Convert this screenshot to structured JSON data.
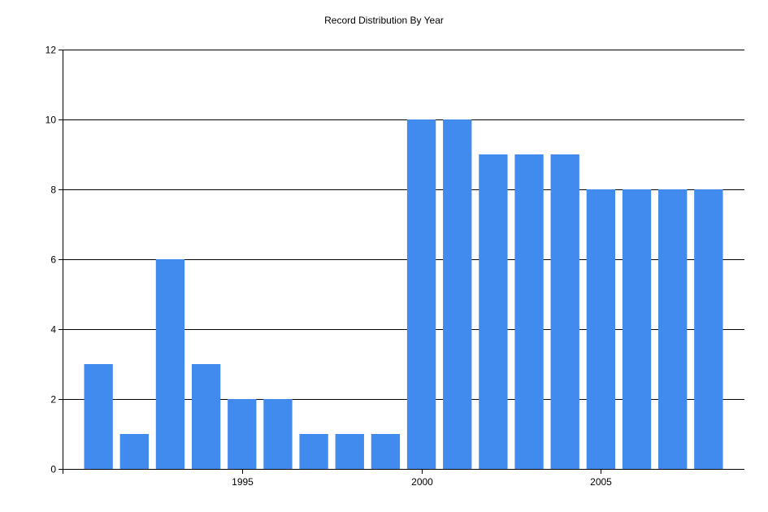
{
  "chart_data": {
    "type": "bar",
    "title": "Record Distribution By Year",
    "xlabel": "",
    "ylabel": "",
    "categories": [
      1991,
      1992,
      1993,
      1994,
      1995,
      1996,
      1997,
      1998,
      1999,
      2000,
      2001,
      2002,
      2003,
      2004,
      2005,
      2006,
      2007,
      2008
    ],
    "values": [
      3,
      1,
      6,
      3,
      2,
      2,
      1,
      1,
      1,
      10,
      10,
      9,
      9,
      9,
      8,
      8,
      8,
      8
    ],
    "ylim": [
      0,
      12
    ],
    "xlim": [
      1990,
      2009
    ],
    "yticks": [
      0,
      2,
      4,
      6,
      8,
      10,
      12
    ],
    "xticks": [
      1995,
      2000,
      2005
    ],
    "grid": "horizontal",
    "legend": "none",
    "bar_color": "#428bee",
    "grid_color": "#000000"
  }
}
